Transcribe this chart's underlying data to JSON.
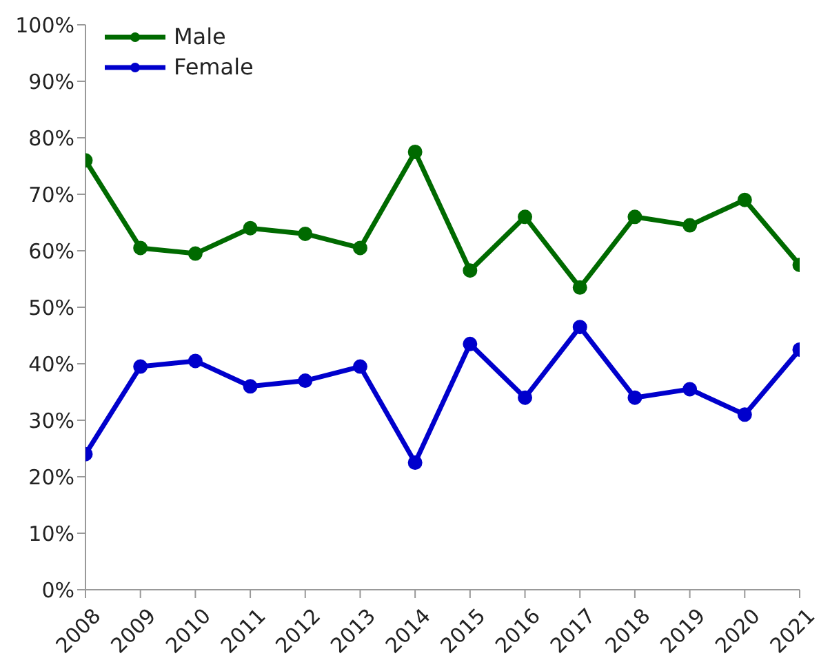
{
  "chart_data": {
    "type": "line",
    "categories": [
      "2008",
      "2009",
      "2010",
      "2011",
      "2012",
      "2013",
      "2014",
      "2015",
      "2016",
      "2017",
      "2018",
      "2019",
      "2020",
      "2021"
    ],
    "series": [
      {
        "name": "Male",
        "color": "#006a00",
        "values": [
          76,
          60.5,
          59.5,
          64,
          63,
          60.5,
          77.5,
          56.5,
          66,
          53.5,
          66,
          64.5,
          69,
          57.5
        ]
      },
      {
        "name": "Female",
        "color": "#0000cc",
        "values": [
          24,
          39.5,
          40.5,
          36,
          37,
          39.5,
          22.5,
          43.5,
          34,
          46.5,
          34,
          35.5,
          31,
          42.5
        ]
      }
    ],
    "ylim": [
      0,
      100
    ],
    "yticks": [
      {
        "value": 0,
        "label": "0%"
      },
      {
        "value": 10,
        "label": "10%"
      },
      {
        "value": 20,
        "label": "20%"
      },
      {
        "value": 30,
        "label": "30%"
      },
      {
        "value": 40,
        "label": "40%"
      },
      {
        "value": 50,
        "label": "50%"
      },
      {
        "value": 60,
        "label": "60%"
      },
      {
        "value": 70,
        "label": "70%"
      },
      {
        "value": 80,
        "label": "80%"
      },
      {
        "value": 90,
        "label": "90%"
      },
      {
        "value": 100,
        "label": "100%"
      }
    ],
    "legend": "top left",
    "marker": "circle",
    "line_style": "solid",
    "grid": false
  }
}
